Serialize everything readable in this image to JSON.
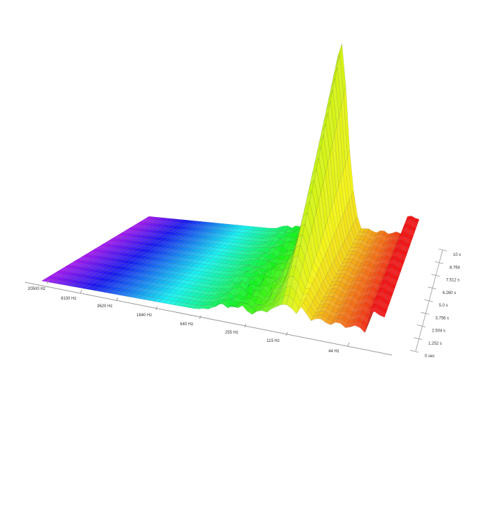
{
  "chart_data": {
    "type": "waterfall-surface",
    "title": "",
    "x_axis": {
      "label": "",
      "scale": "log",
      "ticks": [
        "20500 Hz",
        "8100 Hz",
        "3620 Hz",
        "1640 Hz",
        "640 Hz",
        "255 Hz",
        "115 Hz",
        "44 Hz"
      ],
      "direction": "high-to-low, left-to-right"
    },
    "depth_axis": {
      "label": "",
      "ticks": [
        "10 s",
        "8.764",
        "7.512 s",
        "6.260 s",
        "5.0 s",
        "3.756 s",
        "2.504 s",
        "1.252 s",
        "0 sec"
      ],
      "range": [
        0,
        10
      ]
    },
    "colormap": [
      "#a020f0",
      "#3030e0",
      "#40e0e0",
      "#40e020",
      "#e8f020",
      "#f0a020",
      "#e02020"
    ],
    "features": {
      "dominant_peak_hz": "between 255 Hz and 115 Hz, decaying slowly toward 10 s",
      "grid": false
    }
  }
}
